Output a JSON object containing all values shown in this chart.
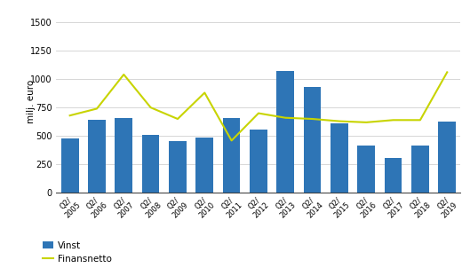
{
  "categories": [
    "Q2/\n2005",
    "Q2/\n2006",
    "Q2/\n2007",
    "Q2/\n2008",
    "Q2/\n2009",
    "Q2/\n2010",
    "Q2/\n2011",
    "Q2/\n2012",
    "Q2/\n2013",
    "Q2/\n2014",
    "Q2/\n2015",
    "Q2/\n2016",
    "Q2/\n2017",
    "Q2/\n2018",
    "Q2/\n2019"
  ],
  "bar_values": [
    475,
    640,
    660,
    510,
    455,
    490,
    660,
    560,
    1070,
    930,
    610,
    420,
    305,
    420,
    630
  ],
  "line_values": [
    680,
    740,
    1040,
    750,
    650,
    880,
    460,
    700,
    660,
    650,
    630,
    620,
    640,
    640,
    1060
  ],
  "bar_color": "#2e75b6",
  "line_color": "#c8d400",
  "ylabel": "milj. euro",
  "ylim": [
    0,
    1600
  ],
  "yticks": [
    0,
    250,
    500,
    750,
    1000,
    1250,
    1500
  ],
  "legend_bar": "Vinst",
  "legend_line": "Finansnetto",
  "background_color": "#ffffff",
  "grid_color": "#d0d0d0"
}
